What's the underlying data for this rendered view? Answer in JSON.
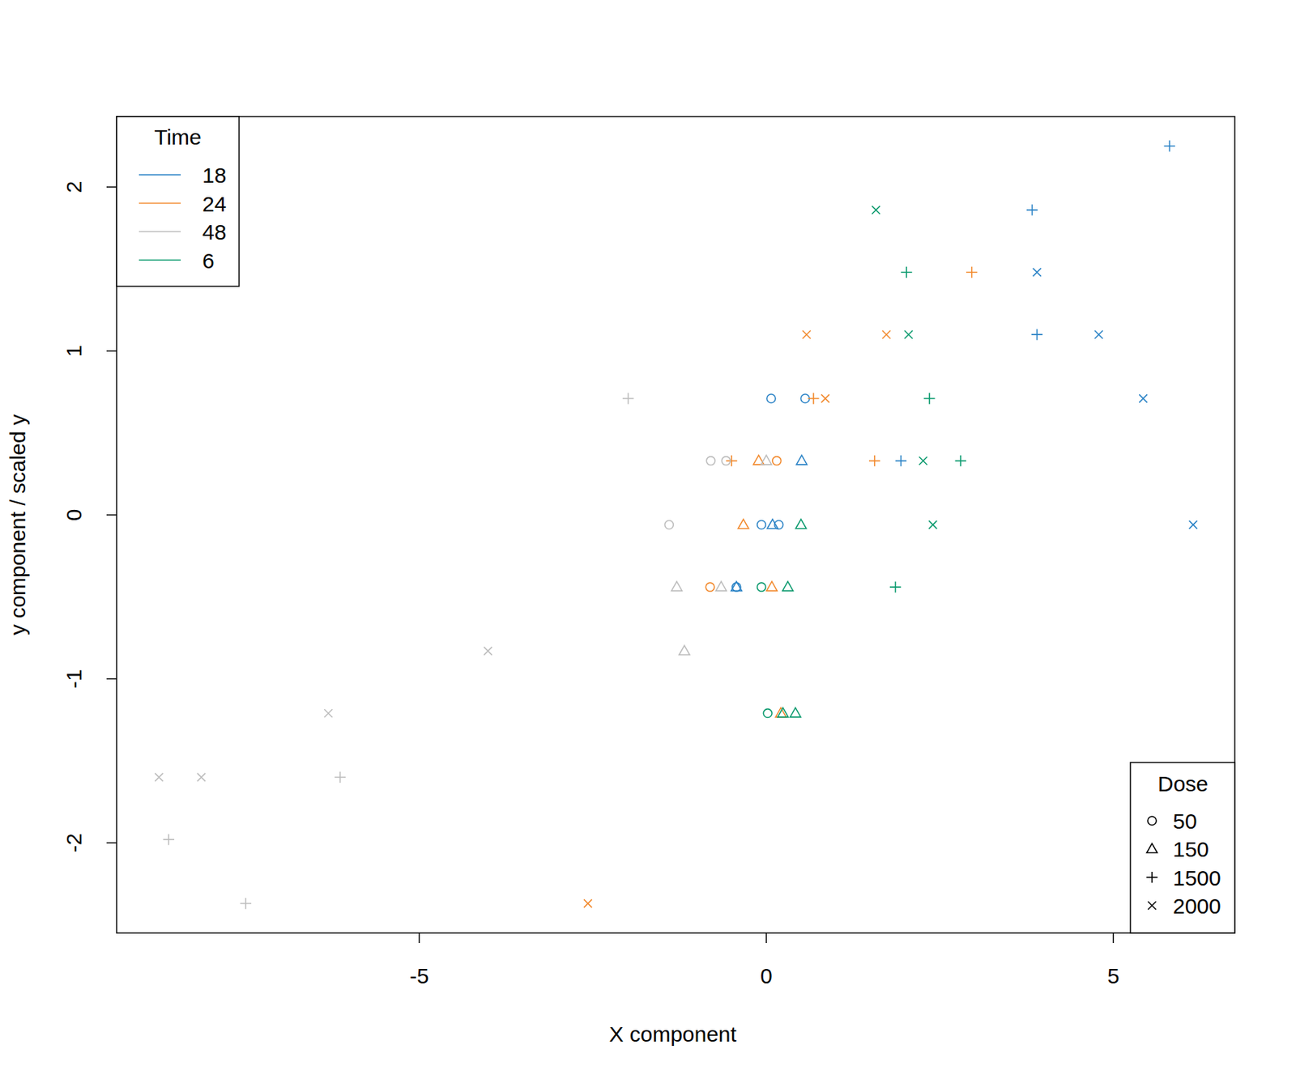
{
  "chart_data": {
    "type": "scatter",
    "x_label": "X component",
    "y_label": "y component / scaled y",
    "xlim": [
      -9.36,
      6.75
    ],
    "ylim": [
      -2.55,
      2.43
    ],
    "xticks": [
      -5,
      0,
      5
    ],
    "yticks": [
      -2,
      -1,
      0,
      1,
      2
    ],
    "legend": "top-left",
    "legend_title": "Time",
    "series": [
      {
        "name": "18",
        "color": "#2b83c6",
        "x": [
          5.81,
          3.83,
          3.9,
          3.9,
          4.79,
          5.43,
          0.07,
          0.56,
          0.51,
          1.94,
          -0.07,
          0.09,
          0.18,
          6.15,
          -0.43,
          -0.43
        ],
        "values": [
          2.25,
          1.86,
          1.48,
          1.1,
          1.1,
          0.71,
          0.71,
          0.71,
          0.33,
          0.33,
          -0.06,
          -0.06,
          -0.06,
          -0.06,
          -0.44,
          -0.44
        ],
        "dose": [
          1500,
          1500,
          2000,
          1500,
          2000,
          2000,
          50,
          50,
          150,
          1500,
          50,
          150,
          50,
          2000,
          150,
          50
        ]
      },
      {
        "name": "24",
        "color": "#f28a2e",
        "x": [
          2.96,
          0.58,
          1.73,
          0.68,
          0.85,
          -0.5,
          -0.11,
          0.15,
          1.56,
          -0.33,
          -0.81,
          0.08,
          0.21,
          -2.57
        ],
        "values": [
          1.48,
          1.1,
          1.1,
          0.71,
          0.71,
          0.33,
          0.33,
          0.33,
          0.33,
          -0.06,
          -0.44,
          -0.44,
          -1.21,
          -2.37
        ],
        "dose": [
          1500,
          2000,
          2000,
          1500,
          2000,
          1500,
          150,
          50,
          1500,
          150,
          50,
          150,
          150,
          2000
        ]
      },
      {
        "name": "48",
        "color": "#bdbdbd",
        "x": [
          -1.99,
          -0.8,
          -0.58,
          0.0,
          -1.4,
          -1.29,
          -0.65,
          -1.18,
          -4.01,
          -6.31,
          -6.14,
          -8.75,
          -8.14,
          -8.61,
          -7.5
        ],
        "values": [
          0.71,
          0.33,
          0.33,
          0.33,
          -0.06,
          -0.44,
          -0.44,
          -0.83,
          -0.83,
          -1.21,
          -1.6,
          -1.6,
          -1.6,
          -1.98,
          -2.37
        ],
        "dose": [
          1500,
          50,
          50,
          150,
          50,
          150,
          150,
          150,
          2000,
          2000,
          1500,
          2000,
          2000,
          1500,
          1500
        ]
      },
      {
        "name": "6",
        "color": "#0b9a6e",
        "x": [
          1.58,
          2.02,
          2.05,
          2.35,
          2.26,
          2.8,
          0.5,
          2.4,
          -0.07,
          0.31,
          1.86,
          0.02,
          0.24,
          0.42
        ],
        "values": [
          1.86,
          1.48,
          1.1,
          0.71,
          0.33,
          0.33,
          -0.06,
          -0.06,
          -0.44,
          -0.44,
          -0.44,
          -1.21,
          -1.21,
          -1.21
        ],
        "dose": [
          2000,
          1500,
          2000,
          1500,
          2000,
          1500,
          150,
          2000,
          50,
          150,
          1500,
          50,
          150,
          150
        ]
      }
    ],
    "dose_legend": {
      "title": "Dose",
      "legend": "bottom-right",
      "levels": [
        50,
        150,
        1500,
        2000
      ],
      "marker": [
        "circle",
        "triangle",
        "plus",
        "cross"
      ]
    }
  }
}
